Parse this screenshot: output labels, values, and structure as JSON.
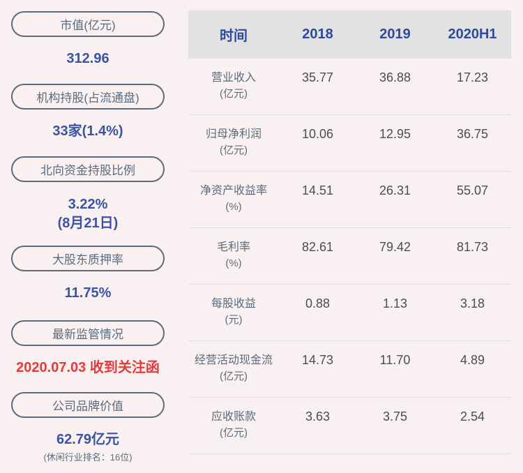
{
  "colors": {
    "background": "#f9f1f1",
    "pill_border": "#5c6b7c",
    "pill_text": "#5c6b7c",
    "value_blue": "#3a53a4",
    "alert_red": "#e13b3b",
    "table_header_bg": "#e3e2e2",
    "table_header_text": "#2c4b9c",
    "table_label_text": "#5c6b7c",
    "table_value_text": "#4d4d4d",
    "divider": "#e3dfdf"
  },
  "sidebar": {
    "items": [
      {
        "label": "市值(亿元)",
        "value": "312.96"
      },
      {
        "label": "机构持股(占流通盘)",
        "value": "33家(1.4%)"
      },
      {
        "label": "北向资金持股比例",
        "value": "3.22%",
        "value2": "(8月21日)"
      },
      {
        "label": "大股东质押率",
        "value": "11.75%"
      },
      {
        "label": "最新监管情况",
        "value": "2020.07.03 收到关注函"
      },
      {
        "label": "公司品牌价值",
        "value": "62.79亿元",
        "note": "(休闲行业排名：16位)"
      }
    ]
  },
  "table": {
    "columns": [
      "时间",
      "2018",
      "2019",
      "2020H1"
    ],
    "rows": [
      {
        "label": "营业收入",
        "unit": "(亿元)",
        "values": [
          "35.77",
          "36.88",
          "17.23"
        ]
      },
      {
        "label": "归母净利润",
        "unit": "(亿元)",
        "values": [
          "10.06",
          "12.95",
          "36.75"
        ]
      },
      {
        "label": "净资产收益率",
        "unit": "(%)",
        "values": [
          "14.51",
          "26.31",
          "55.07"
        ]
      },
      {
        "label": "毛利率",
        "unit": "(%)",
        "values": [
          "82.61",
          "79.42",
          "81.73"
        ]
      },
      {
        "label": "每股收益",
        "unit": "(元)",
        "values": [
          "0.88",
          "1.13",
          "3.18"
        ]
      },
      {
        "label": "经营活动现金流",
        "unit": "(亿元)",
        "values": [
          "14.73",
          "11.70",
          "4.89"
        ]
      },
      {
        "label": "应收账款",
        "unit": "(亿元)",
        "values": [
          "3.63",
          "3.75",
          "2.54"
        ]
      }
    ]
  },
  "chart_data": {
    "type": "table",
    "title": "",
    "columns": [
      "时间",
      "2018",
      "2019",
      "2020H1"
    ],
    "rows": [
      {
        "metric": "营业收入(亿元)",
        "values": [
          35.77,
          36.88,
          17.23
        ]
      },
      {
        "metric": "归母净利润(亿元)",
        "values": [
          10.06,
          12.95,
          36.75
        ]
      },
      {
        "metric": "净资产收益率(%)",
        "values": [
          14.51,
          26.31,
          55.07
        ]
      },
      {
        "metric": "毛利率(%)",
        "values": [
          82.61,
          79.42,
          81.73
        ]
      },
      {
        "metric": "每股收益(元)",
        "values": [
          0.88,
          1.13,
          3.18
        ]
      },
      {
        "metric": "经营活动现金流(亿元)",
        "values": [
          14.73,
          11.7,
          4.89
        ]
      },
      {
        "metric": "应收账款(亿元)",
        "values": [
          3.63,
          3.75,
          2.54
        ]
      }
    ],
    "side_stats": [
      {
        "label": "市值(亿元)",
        "value": 312.96
      },
      {
        "label": "机构持股(占流通盘)",
        "value": "33家(1.4%)"
      },
      {
        "label": "北向资金持股比例",
        "value": "3.22% (8月21日)"
      },
      {
        "label": "大股东质押率",
        "value": "11.75%"
      },
      {
        "label": "最新监管情况",
        "value": "2020.07.03 收到关注函"
      },
      {
        "label": "公司品牌价值",
        "value": "62.79亿元",
        "note": "休闲行业排名：16位"
      }
    ]
  }
}
